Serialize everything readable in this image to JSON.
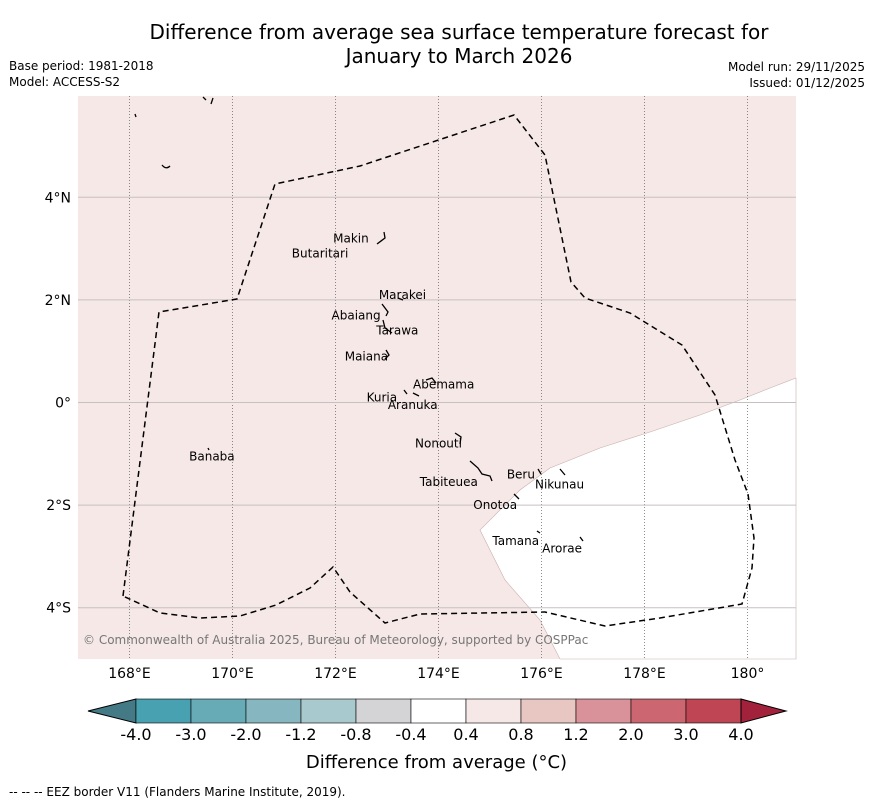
{
  "header": {
    "title_line1": "Difference from average sea surface temperature forecast for",
    "title_line2": "January to March 2026",
    "base_period": "Base period: 1981-2018",
    "model": "Model: ACCESS-S2",
    "model_run": "Model run: 29/11/2025",
    "issued": "Issued: 01/12/2025"
  },
  "map": {
    "copyright": "© Commonwealth of Australia 2025, Bureau of Meteorology, supported by COSPPac",
    "lon_ticks": [
      "168°E",
      "170°E",
      "172°E",
      "174°E",
      "176°E",
      "178°E",
      "180°"
    ],
    "lat_ticks": [
      "4°N",
      "2°N",
      "0°",
      "2°S",
      "4°S"
    ],
    "lon_values": [
      168,
      170,
      172,
      174,
      176,
      178,
      180
    ],
    "lat_values": [
      4,
      2,
      0,
      -2,
      -4
    ],
    "places": [
      {
        "name": "Makin",
        "lon": 172.3,
        "lat": 3.2
      },
      {
        "name": "Butaritari",
        "lon": 171.7,
        "lat": 2.9
      },
      {
        "name": "Marakei",
        "lon": 173.3,
        "lat": 2.1
      },
      {
        "name": "Abaiang",
        "lon": 172.4,
        "lat": 1.7
      },
      {
        "name": "Tarawa",
        "lon": 173.2,
        "lat": 1.4
      },
      {
        "name": "Maiana",
        "lon": 172.6,
        "lat": 0.9
      },
      {
        "name": "Abemama",
        "lon": 174.1,
        "lat": 0.35
      },
      {
        "name": "Kuria",
        "lon": 172.9,
        "lat": 0.1
      },
      {
        "name": "Aranuka",
        "lon": 173.5,
        "lat": -0.05
      },
      {
        "name": "Nonouti",
        "lon": 174.0,
        "lat": -0.8
      },
      {
        "name": "Banaba",
        "lon": 169.6,
        "lat": -1.05
      },
      {
        "name": "Beru",
        "lon": 175.6,
        "lat": -1.4
      },
      {
        "name": "Nikunau",
        "lon": 176.35,
        "lat": -1.6
      },
      {
        "name": "Tabiteuea",
        "lon": 174.2,
        "lat": -1.55
      },
      {
        "name": "Onotoa",
        "lon": 175.1,
        "lat": -2.0
      },
      {
        "name": "Tamana",
        "lon": 175.5,
        "lat": -2.7
      },
      {
        "name": "Arorae",
        "lon": 176.4,
        "lat": -2.85
      }
    ],
    "colors": {
      "fill_0_4_to_0_8": "#f5e8e6",
      "fill_neutral": "#ffffff",
      "grid": "#c8c0c0"
    }
  },
  "colorbar": {
    "labels": [
      "-4.0",
      "-3.0",
      "-2.0",
      "-1.2",
      "-0.8",
      "-0.4",
      "0.4",
      "0.8",
      "1.2",
      "2.0",
      "3.0",
      "4.0"
    ],
    "colors": [
      "#447a85",
      "#48a1b0",
      "#67abb7",
      "#86b7c0",
      "#a8c9cd",
      "#d4d4d6",
      "#ffffff",
      "#f6e8e6",
      "#e8c6c2",
      "#d9919a",
      "#cc6670",
      "#c04554",
      "#a2223c"
    ],
    "title": "Difference from average (°C)"
  },
  "footer": {
    "legend": "--  --  -- EEZ border V11 (Flanders Marine Institute, 2019)."
  }
}
